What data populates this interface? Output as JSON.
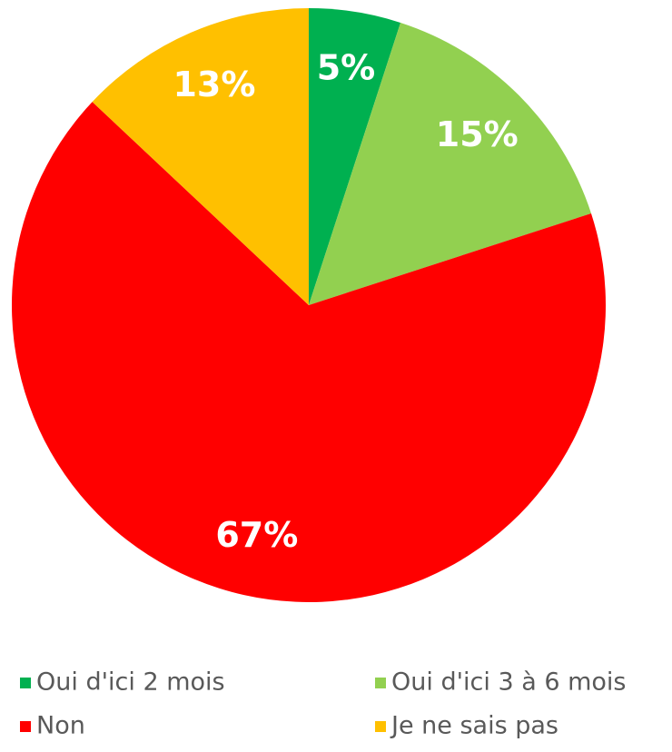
{
  "chart_data": {
    "type": "pie",
    "categories": [
      "Oui d'ici 2 mois",
      "Oui d'ici 3 à 6 mois",
      "Non",
      "Je ne sais pas"
    ],
    "values": [
      5,
      15,
      67,
      13
    ],
    "value_labels": [
      "5%",
      "15%",
      "67%",
      "13%"
    ],
    "colors": [
      "#00b050",
      "#92d050",
      "#ff0000",
      "#ffc000"
    ],
    "legend": "bottom"
  }
}
